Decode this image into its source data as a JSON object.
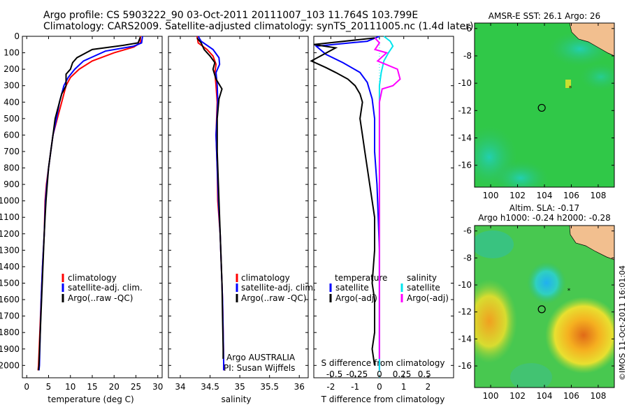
{
  "header": {
    "line1": "Argo profile: CS 5903222_90 03-Oct-2011 20111007_103 11.764S 103.799E",
    "line2": "Climatology: CARS2009. Satellite-adjusted climatology: synTS_20111005.nc (1.4d later)"
  },
  "stamp": "©IMOS 11-Oct-2011 16:01:04",
  "colors": {
    "climatology": "#ff0000",
    "satellite": "#0000ff",
    "argo": "#000000",
    "sal_satellite": "#00e5ee",
    "sal_argo": "#ff00ff"
  },
  "chart_data": [
    {
      "type": "line",
      "xlabel": "temperature (deg C)",
      "xlim": [
        -1,
        31
      ],
      "xticks": [
        0,
        5,
        10,
        15,
        20,
        25,
        30
      ],
      "ylim": [
        2075,
        0
      ],
      "yticks": [
        0,
        100,
        200,
        300,
        400,
        500,
        600,
        700,
        800,
        900,
        1000,
        1100,
        1200,
        1300,
        1400,
        1500,
        1600,
        1700,
        1800,
        1900,
        2000
      ],
      "legend": [
        "climatology",
        "satellite-adj. clim.",
        "Argo(..raw -QC)"
      ],
      "series": [
        {
          "name": "climatology",
          "color": "#ff0000",
          "points": [
            [
              26,
              0
            ],
            [
              26,
              40
            ],
            [
              24.5,
              65
            ],
            [
              20,
              100
            ],
            [
              15,
              150
            ],
            [
              12,
              200
            ],
            [
              10,
              250
            ],
            [
              9,
              300
            ],
            [
              8,
              400
            ],
            [
              7,
              500
            ],
            [
              6,
              600
            ],
            [
              5.5,
              700
            ],
            [
              5,
              800
            ],
            [
              4.5,
              900
            ],
            [
              4.2,
              1000
            ],
            [
              4,
              1200
            ],
            [
              3.6,
              1400
            ],
            [
              3.3,
              1600
            ],
            [
              3,
              1800
            ],
            [
              2.7,
              2000
            ],
            [
              2.6,
              2030
            ]
          ]
        },
        {
          "name": "satellite-adj. clim.",
          "color": "#0000ff",
          "points": [
            [
              26.5,
              0
            ],
            [
              26.3,
              40
            ],
            [
              24.5,
              60
            ],
            [
              18,
              90
            ],
            [
              13,
              150
            ],
            [
              11,
              200
            ],
            [
              9.5,
              250
            ],
            [
              8.5,
              300
            ],
            [
              7.5,
              400
            ],
            [
              6.8,
              500
            ],
            [
              6,
              600
            ],
            [
              5.5,
              700
            ],
            [
              5,
              800
            ],
            [
              4.6,
              900
            ],
            [
              4.3,
              1000
            ],
            [
              4,
              1200
            ],
            [
              3.6,
              1400
            ],
            [
              3.3,
              1600
            ],
            [
              3.1,
              1800
            ],
            [
              2.9,
              2000
            ],
            [
              2.8,
              2030
            ]
          ]
        },
        {
          "name": "Argo(..raw -QC)",
          "color": "#000000",
          "points": [
            [
              26,
              5
            ],
            [
              25.5,
              40
            ],
            [
              22,
              55
            ],
            [
              15,
              80
            ],
            [
              11.5,
              130
            ],
            [
              10.5,
              160
            ],
            [
              10,
              200
            ],
            [
              9,
              230
            ],
            [
              9,
              300
            ],
            [
              8,
              350
            ],
            [
              7.5,
              400
            ],
            [
              6.5,
              500
            ],
            [
              6,
              600
            ],
            [
              5.5,
              700
            ],
            [
              5,
              800
            ],
            [
              4.7,
              900
            ],
            [
              4.4,
              1000
            ],
            [
              4.2,
              1100
            ],
            [
              4,
              1200
            ],
            [
              3.7,
              1400
            ],
            [
              3.4,
              1600
            ],
            [
              3.1,
              1800
            ],
            [
              2.8,
              2000
            ],
            [
              2.7,
              2030
            ]
          ]
        }
      ]
    },
    {
      "type": "line",
      "xlabel": "salinity",
      "xlim": [
        33.8,
        36.15
      ],
      "xticks": [
        34,
        34.5,
        35,
        35.5,
        36
      ],
      "ylim": [
        2075,
        0
      ],
      "legend": [
        "climatology",
        "satellite-adj. clim.",
        "Argo(..raw -QC)"
      ],
      "annotation": [
        "Argo AUSTRALIA",
        "PI: Susan Wijffels"
      ],
      "series": [
        {
          "name": "climatology",
          "color": "#ff0000",
          "points": [
            [
              34.28,
              0
            ],
            [
              34.3,
              40
            ],
            [
              34.45,
              80
            ],
            [
              34.55,
              120
            ],
            [
              34.6,
              170
            ],
            [
              34.58,
              220
            ],
            [
              34.6,
              300
            ],
            [
              34.62,
              400
            ],
            [
              34.6,
              600
            ],
            [
              34.62,
              800
            ],
            [
              34.63,
              1000
            ],
            [
              34.67,
              1200
            ],
            [
              34.69,
              1400
            ],
            [
              34.71,
              1600
            ],
            [
              34.72,
              1800
            ],
            [
              34.73,
              2000
            ],
            [
              34.73,
              2030
            ]
          ]
        },
        {
          "name": "satellite-adj. clim.",
          "color": "#0000ff",
          "points": [
            [
              34.3,
              0
            ],
            [
              34.35,
              30
            ],
            [
              34.55,
              80
            ],
            [
              34.65,
              130
            ],
            [
              34.66,
              170
            ],
            [
              34.6,
              220
            ],
            [
              34.62,
              300
            ],
            [
              34.63,
              400
            ],
            [
              34.6,
              600
            ],
            [
              34.62,
              800
            ],
            [
              34.64,
              1000
            ],
            [
              34.67,
              1200
            ],
            [
              34.69,
              1400
            ],
            [
              34.71,
              1600
            ],
            [
              34.72,
              1800
            ],
            [
              34.73,
              2000
            ],
            [
              34.73,
              2030
            ]
          ]
        },
        {
          "name": "Argo(..raw -QC)",
          "color": "#000000",
          "points": [
            [
              34.28,
              10
            ],
            [
              34.35,
              40
            ],
            [
              34.4,
              80
            ],
            [
              34.5,
              120
            ],
            [
              34.58,
              160
            ],
            [
              34.55,
              200
            ],
            [
              34.6,
              260
            ],
            [
              34.7,
              320
            ],
            [
              34.65,
              380
            ],
            [
              34.62,
              500
            ],
            [
              34.62,
              700
            ],
            [
              34.64,
              900
            ],
            [
              34.66,
              1100
            ],
            [
              34.68,
              1300
            ],
            [
              34.7,
              1500
            ],
            [
              34.71,
              1700
            ],
            [
              34.72,
              1900
            ],
            [
              34.72,
              1960
            ]
          ]
        }
      ]
    },
    {
      "type": "line",
      "xlabel": "T difference from climatology",
      "xticks": [
        -2,
        -1,
        0,
        1,
        2
      ],
      "xlim": [
        -2.7,
        3.05
      ],
      "x2label": "S difference from climatology",
      "x2ticks": [
        -0.5,
        -0.25,
        0,
        0.25,
        0.5
      ],
      "ylim": [
        2075,
        0
      ],
      "legend": {
        "temperature": [
          "satellite",
          "Argo(-adj)"
        ],
        "salinity": [
          "satellite",
          "Argo(-adj)"
        ]
      },
      "series": [
        {
          "name": "satellite",
          "group": "temperature",
          "color": "#0000ff",
          "points": [
            [
              0,
              0
            ],
            [
              -0.5,
              30
            ],
            [
              -2.6,
              60
            ],
            [
              -2.2,
              110
            ],
            [
              -1.5,
              160
            ],
            [
              -0.8,
              220
            ],
            [
              -0.5,
              280
            ],
            [
              -0.3,
              380
            ],
            [
              -0.2,
              500
            ],
            [
              -0.2,
              700
            ],
            [
              -0.1,
              900
            ],
            [
              -0.05,
              1100
            ],
            [
              0,
              1300
            ],
            [
              0,
              1500
            ],
            [
              0,
              1700
            ],
            [
              0,
              1900
            ],
            [
              0,
              2030
            ]
          ]
        },
        {
          "name": "Argo(-adj)",
          "group": "temperature",
          "color": "#000000",
          "points": [
            [
              -0.2,
              10
            ],
            [
              -2.7,
              50
            ],
            [
              -1.8,
              70
            ],
            [
              -2.8,
              150
            ],
            [
              -2.2,
              190
            ],
            [
              -1.8,
              220
            ],
            [
              -1.3,
              260
            ],
            [
              -1.0,
              300
            ],
            [
              -0.8,
              350
            ],
            [
              -0.7,
              400
            ],
            [
              -0.8,
              500
            ],
            [
              -0.7,
              600
            ],
            [
              -0.6,
              700
            ],
            [
              -0.5,
              800
            ],
            [
              -0.4,
              900
            ],
            [
              -0.3,
              1000
            ],
            [
              -0.2,
              1100
            ],
            [
              -0.2,
              1300
            ],
            [
              -0.3,
              1500
            ],
            [
              -0.2,
              1600
            ],
            [
              -0.2,
              1800
            ],
            [
              -0.3,
              1900
            ],
            [
              -0.2,
              2000
            ]
          ]
        },
        {
          "name": "satellite",
          "group": "salinity",
          "color": "#00e5ee",
          "points": [
            [
              0.05,
              0
            ],
            [
              0.12,
              30
            ],
            [
              0.15,
              60
            ],
            [
              0.1,
              100
            ],
            [
              0.05,
              150
            ],
            [
              0.02,
              220
            ],
            [
              0,
              300
            ],
            [
              0,
              500
            ],
            [
              0,
              800
            ],
            [
              0,
              1200
            ],
            [
              0,
              1600
            ],
            [
              0,
              2030
            ]
          ]
        },
        {
          "name": "Argo(-adj)",
          "group": "salinity",
          "color": "#ff00ff",
          "points": [
            [
              -0.05,
              10
            ],
            [
              0,
              40
            ],
            [
              -0.05,
              80
            ],
            [
              0.08,
              100
            ],
            [
              -0.02,
              150
            ],
            [
              0.2,
              200
            ],
            [
              0.23,
              260
            ],
            [
              0.15,
              300
            ],
            [
              0.03,
              320
            ],
            [
              0,
              400
            ],
            [
              0,
              1000
            ],
            [
              0,
              1500
            ],
            [
              0,
              1960
            ]
          ]
        }
      ]
    }
  ],
  "maps": [
    {
      "title": "AMSR-E SST: 26.1  Argo: 26",
      "xticks": [
        100,
        102,
        104,
        106,
        108
      ],
      "yticks": [
        -6,
        -8,
        -10,
        -12,
        -14,
        -16
      ],
      "xlim": [
        98.8,
        109.2
      ],
      "ylim": [
        -17.6,
        -5.6
      ],
      "argo_location": [
        103.8,
        -11.8
      ]
    },
    {
      "title_line1": "Altim. SLA: -0.17",
      "title_line2": "Argo h1000: -0.24  h2000: -0.28",
      "xticks": [
        100,
        102,
        104,
        106,
        108
      ],
      "yticks": [
        -6,
        -8,
        -10,
        -12,
        -14,
        -16
      ],
      "xlim": [
        98.8,
        109.2
      ],
      "ylim": [
        -17.6,
        -5.6
      ],
      "argo_location": [
        103.8,
        -11.8
      ]
    }
  ]
}
